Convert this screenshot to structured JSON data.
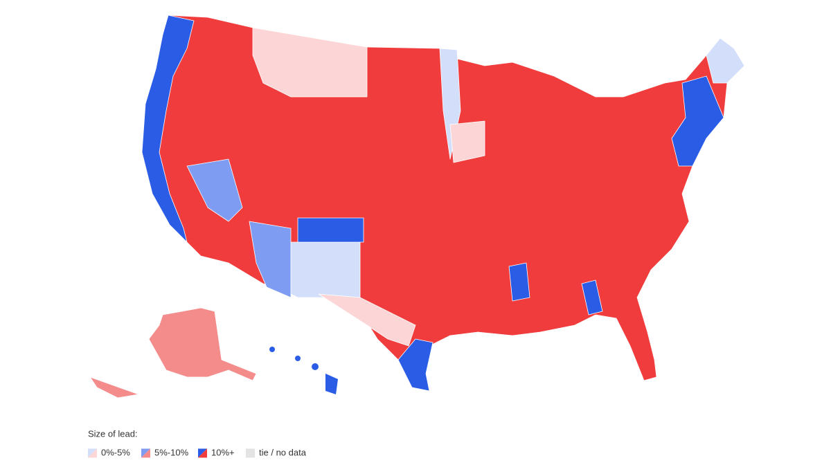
{
  "legend": {
    "title": "Size of lead:",
    "items": [
      {
        "label": "0%-5%",
        "colors": [
          "#d3defa",
          "#fcd6d6"
        ]
      },
      {
        "label": "5%-10%",
        "colors": [
          "#7d9cf2",
          "#f48c8c"
        ]
      },
      {
        "label": "10%+",
        "colors": [
          "#2b5ce6",
          "#f03c3c"
        ]
      },
      {
        "label": "tie / no data",
        "colors": [
          "#e3e3e3",
          "#e3e3e3"
        ]
      }
    ]
  }
}
